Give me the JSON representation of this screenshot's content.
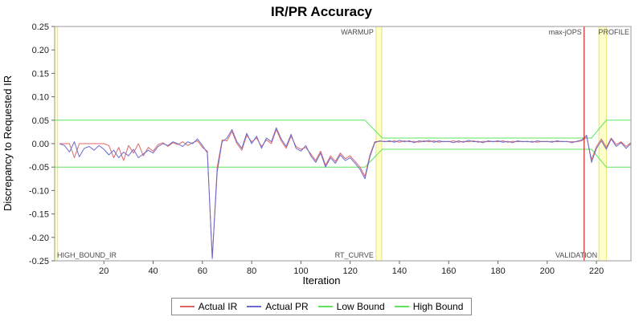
{
  "title": "IR/PR Accuracy",
  "chart_data": {
    "type": "line",
    "title": "IR/PR Accuracy",
    "xlabel": "Iteration",
    "ylabel": "Discrepancy to Requested IR",
    "xlim": [
      0,
      234
    ],
    "ylim": [
      -0.25,
      0.25
    ],
    "xticks": [
      20,
      40,
      60,
      80,
      100,
      120,
      140,
      160,
      180,
      200,
      220
    ],
    "yticks": [
      -0.25,
      -0.2,
      -0.15,
      -0.1,
      -0.05,
      0,
      0.05,
      0.1,
      0.15,
      0.2,
      0.25
    ],
    "x_start": 2,
    "x_step": 2,
    "series": [
      {
        "name": "Actual IR",
        "color": "#e06666",
        "values": [
          0.0,
          0.0,
          0.0,
          -0.03,
          0.0,
          0.0,
          0.0,
          0.0,
          0.0,
          0.0,
          -0.004,
          -0.03,
          -0.008,
          -0.036,
          -0.004,
          -0.02,
          0.0,
          -0.026,
          -0.008,
          -0.016,
          -0.002,
          0.002,
          -0.006,
          0.002,
          -0.002,
          0.004,
          -0.004,
          0.002,
          0.006,
          -0.008,
          -0.016,
          -0.245,
          -0.05,
          0.008,
          0.006,
          0.026,
          0.0,
          -0.014,
          0.018,
          0.004,
          0.012,
          -0.006,
          0.008,
          0.0,
          0.03,
          0.006,
          -0.01,
          0.016,
          -0.006,
          -0.012,
          -0.008,
          -0.022,
          -0.036,
          -0.016,
          -0.046,
          -0.026,
          -0.038,
          -0.02,
          -0.032,
          -0.026,
          -0.038,
          -0.05,
          -0.07,
          -0.024,
          0.004,
          0.005,
          0.005,
          0.004,
          0.006,
          0.003,
          0.006,
          0.004,
          0.005,
          0.003,
          0.006,
          0.004,
          0.006,
          0.003,
          0.005,
          0.004,
          0.006,
          0.003,
          0.005,
          0.004,
          0.006,
          0.003,
          0.005,
          0.004,
          0.005,
          0.004,
          0.006,
          0.003,
          0.005,
          0.004,
          0.005,
          0.004,
          0.005,
          0.003,
          0.005,
          0.004,
          0.005,
          0.004,
          0.005,
          0.004,
          0.004,
          0.004,
          0.006,
          0.014,
          -0.034,
          -0.006,
          0.01,
          -0.008,
          0.012,
          -0.002,
          0.004,
          -0.006,
          0.002
        ]
      },
      {
        "name": "Actual PR",
        "color": "#6b6bcf",
        "values": [
          0.0,
          -0.004,
          -0.018,
          0.004,
          -0.028,
          -0.01,
          -0.006,
          -0.014,
          -0.004,
          -0.012,
          -0.024,
          -0.014,
          -0.03,
          -0.018,
          -0.026,
          -0.012,
          -0.03,
          -0.022,
          -0.014,
          -0.02,
          -0.006,
          0.0,
          -0.004,
          0.004,
          0.0,
          -0.006,
          0.004,
          0.0,
          0.01,
          -0.004,
          -0.02,
          -0.245,
          -0.06,
          0.004,
          0.012,
          0.03,
          0.004,
          -0.01,
          0.022,
          0.0,
          0.016,
          -0.01,
          0.012,
          0.004,
          0.034,
          0.01,
          -0.006,
          0.02,
          -0.01,
          -0.016,
          -0.004,
          -0.026,
          -0.04,
          -0.02,
          -0.05,
          -0.03,
          -0.042,
          -0.024,
          -0.036,
          -0.03,
          -0.042,
          -0.055,
          -0.075,
          -0.028,
          0.002,
          0.006,
          0.004,
          0.006,
          0.003,
          0.007,
          0.004,
          0.006,
          0.002,
          0.006,
          0.004,
          0.007,
          0.003,
          0.006,
          0.004,
          0.005,
          0.002,
          0.006,
          0.003,
          0.007,
          0.004,
          0.005,
          0.002,
          0.006,
          0.004,
          0.006,
          0.003,
          0.005,
          0.002,
          0.006,
          0.004,
          0.005,
          0.003,
          0.006,
          0.004,
          0.005,
          0.003,
          0.006,
          0.004,
          0.005,
          0.002,
          0.005,
          0.008,
          0.018,
          -0.04,
          -0.01,
          0.006,
          -0.012,
          0.01,
          -0.006,
          0.002,
          -0.01,
          0.0
        ]
      }
    ],
    "bounds": [
      {
        "name": "Low Bound",
        "color": "#5ce65c",
        "points": [
          [
            0,
            -0.05
          ],
          [
            126,
            -0.05
          ],
          [
            133,
            -0.012
          ],
          [
            218,
            -0.012
          ],
          [
            224,
            -0.05
          ],
          [
            234,
            -0.05
          ]
        ]
      },
      {
        "name": "High Bound",
        "color": "#5ce65c",
        "points": [
          [
            0,
            0.05
          ],
          [
            126,
            0.05
          ],
          [
            133,
            0.012
          ],
          [
            218,
            0.012
          ],
          [
            224,
            0.05
          ],
          [
            234,
            0.05
          ]
        ]
      }
    ],
    "markers": {
      "band_fill": "#ffffcc",
      "band_edge": "#e6e66e",
      "bands": [
        {
          "x0": 0,
          "x1": 1.2
        },
        {
          "x0": 130.5,
          "x1": 132.8
        },
        {
          "x0": 221,
          "x1": 224
        }
      ],
      "vlines": [
        {
          "x": 215,
          "color": "#cc2222"
        }
      ],
      "labels": [
        {
          "text": "WARMUP",
          "x": 130.5,
          "dx": -3,
          "anchor": "end",
          "v": "top"
        },
        {
          "text": "max-jOPS",
          "x": 215,
          "dx": -3,
          "anchor": "end",
          "v": "top"
        },
        {
          "text": "PROFILE",
          "x": 234,
          "dx": -2,
          "anchor": "end",
          "v": "top"
        },
        {
          "text": "HIGH_BOUND_IR",
          "x": 0,
          "dx": 3,
          "anchor": "start",
          "v": "bottom"
        },
        {
          "text": "RT_CURVE",
          "x": 130.5,
          "dx": -3,
          "anchor": "end",
          "v": "bottom"
        },
        {
          "text": "VALIDATION",
          "x": 221,
          "dx": -2,
          "anchor": "end",
          "v": "bottom"
        }
      ]
    },
    "legend_position": "bottom",
    "grid": false
  },
  "legend": {
    "items": [
      {
        "label": "Actual IR",
        "color": "#e06666"
      },
      {
        "label": "Actual PR",
        "color": "#6b6bcf"
      },
      {
        "label": "Low Bound",
        "color": "#5ce65c"
      },
      {
        "label": "High Bound",
        "color": "#5ce65c"
      }
    ]
  }
}
